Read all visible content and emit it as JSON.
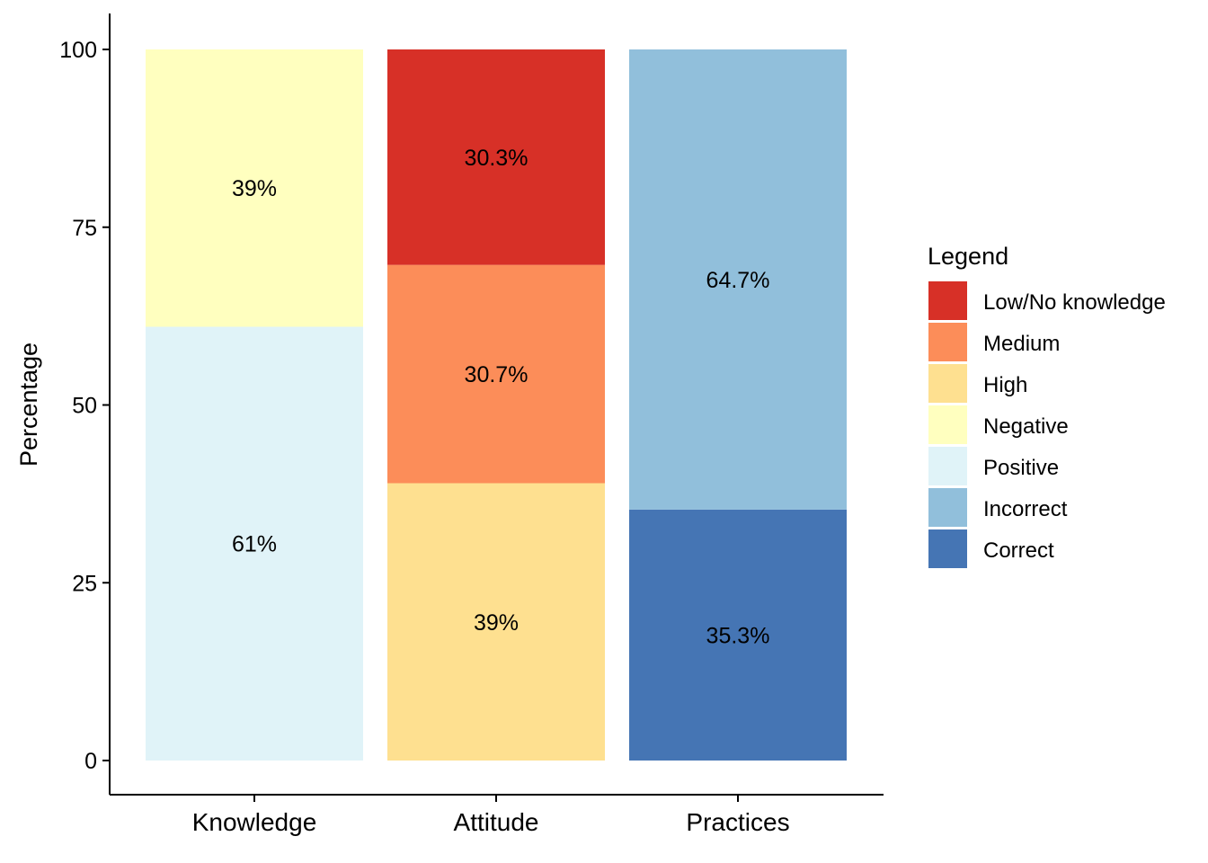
{
  "chart_data": {
    "type": "bar",
    "stacked": true,
    "categories": [
      "Knowledge",
      "Attitude",
      "Practices"
    ],
    "ylabel": "Percentage",
    "xlabel": "",
    "ylim": [
      0,
      100
    ],
    "yticks": [
      0,
      25,
      50,
      75,
      100
    ],
    "grid": false,
    "legend_title": "Legend",
    "legend_position": "right",
    "legend": [
      {
        "label": "Low/No knowledge",
        "color": "#d73027"
      },
      {
        "label": "Medium",
        "color": "#fc8d59"
      },
      {
        "label": "High",
        "color": "#fee090"
      },
      {
        "label": "Negative",
        "color": "#ffffbf"
      },
      {
        "label": "Positive",
        "color": "#e0f3f8"
      },
      {
        "label": "Incorrect",
        "color": "#91bfdb"
      },
      {
        "label": "Correct",
        "color": "#4575b4"
      }
    ],
    "bars": [
      {
        "category": "Knowledge",
        "segments": [
          {
            "name": "Positive",
            "value": 61,
            "label": "61%",
            "color": "#e0f3f8"
          },
          {
            "name": "Negative",
            "value": 39,
            "label": "39%",
            "color": "#ffffbf"
          }
        ]
      },
      {
        "category": "Attitude",
        "segments": [
          {
            "name": "High",
            "value": 39,
            "label": "39%",
            "color": "#fee090"
          },
          {
            "name": "Medium",
            "value": 30.7,
            "label": "30.7%",
            "color": "#fc8d59"
          },
          {
            "name": "Low/No knowledge",
            "value": 30.3,
            "label": "30.3%",
            "color": "#d73027"
          }
        ]
      },
      {
        "category": "Practices",
        "segments": [
          {
            "name": "Correct",
            "value": 35.3,
            "label": "35.3%",
            "color": "#4575b4"
          },
          {
            "name": "Incorrect",
            "value": 64.7,
            "label": "64.7%",
            "color": "#91bfdb"
          }
        ]
      }
    ]
  }
}
